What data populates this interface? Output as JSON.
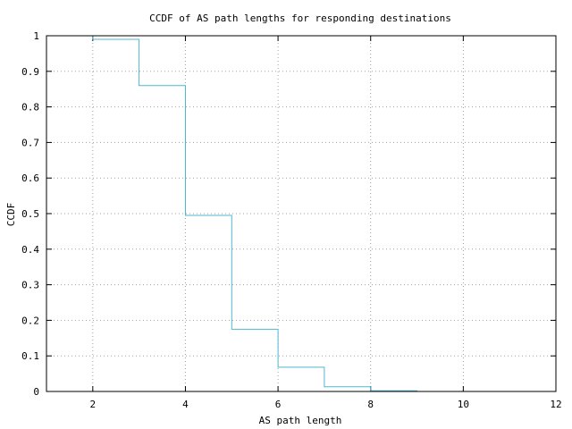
{
  "chart_data": {
    "type": "line",
    "step": true,
    "title": "CCDF of AS path lengths for responding destinations",
    "xlabel": "AS path length",
    "ylabel": "CCDF",
    "xlim": [
      1,
      12
    ],
    "ylim": [
      0,
      1
    ],
    "x_ticks": [
      2,
      4,
      6,
      8,
      10,
      12
    ],
    "y_ticks": [
      0,
      0.1,
      0.2,
      0.3,
      0.4,
      0.5,
      0.6,
      0.7,
      0.8,
      0.9,
      1
    ],
    "grid": true,
    "series": [
      {
        "color": "#4fb7d0",
        "points": [
          {
            "x": 2,
            "y": 1.0
          },
          {
            "x": 2,
            "y": 0.99
          },
          {
            "x": 3,
            "y": 0.99
          },
          {
            "x": 3,
            "y": 0.86
          },
          {
            "x": 4,
            "y": 0.86
          },
          {
            "x": 4,
            "y": 0.495
          },
          {
            "x": 5,
            "y": 0.495
          },
          {
            "x": 5,
            "y": 0.175
          },
          {
            "x": 6,
            "y": 0.175
          },
          {
            "x": 6,
            "y": 0.068
          },
          {
            "x": 7,
            "y": 0.068
          },
          {
            "x": 7,
            "y": 0.013
          },
          {
            "x": 8,
            "y": 0.013
          },
          {
            "x": 8,
            "y": 0.002
          },
          {
            "x": 9,
            "y": 0.002
          },
          {
            "x": 9,
            "y": 0.0
          },
          {
            "x": 12,
            "y": 0.0
          }
        ]
      }
    ]
  }
}
